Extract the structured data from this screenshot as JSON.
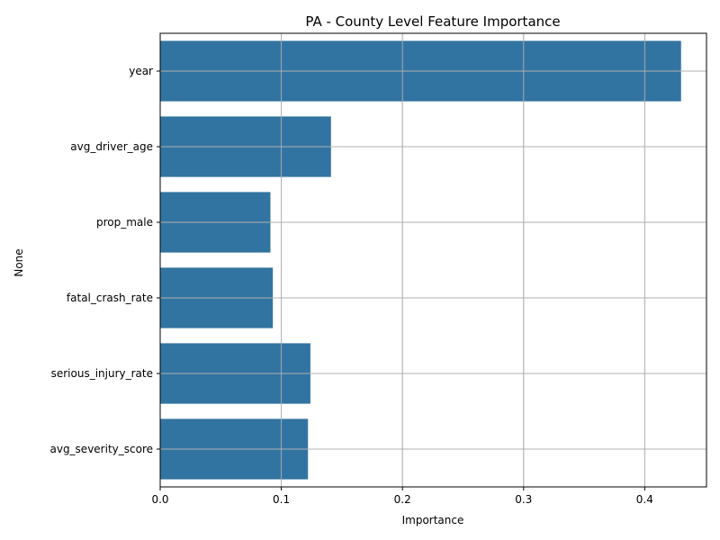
{
  "chart_data": {
    "type": "bar",
    "orientation": "horizontal",
    "title": "PA - County Level Feature Importance",
    "xlabel": "Importance",
    "ylabel": "None",
    "categories": [
      "year",
      "avg_driver_age",
      "prop_male",
      "fatal_crash_rate",
      "serious_injury_rate",
      "avg_severity_score"
    ],
    "values": [
      0.43,
      0.141,
      0.091,
      0.093,
      0.124,
      0.122
    ],
    "xlim": [
      0,
      0.451
    ],
    "xticks": [
      0.0,
      0.1,
      0.2,
      0.3,
      0.4
    ],
    "xtick_labels": [
      "0.0",
      "0.1",
      "0.2",
      "0.3",
      "0.4"
    ],
    "grid": true,
    "bar_color": "#3274a1",
    "grid_color": "#b0b0b0"
  }
}
